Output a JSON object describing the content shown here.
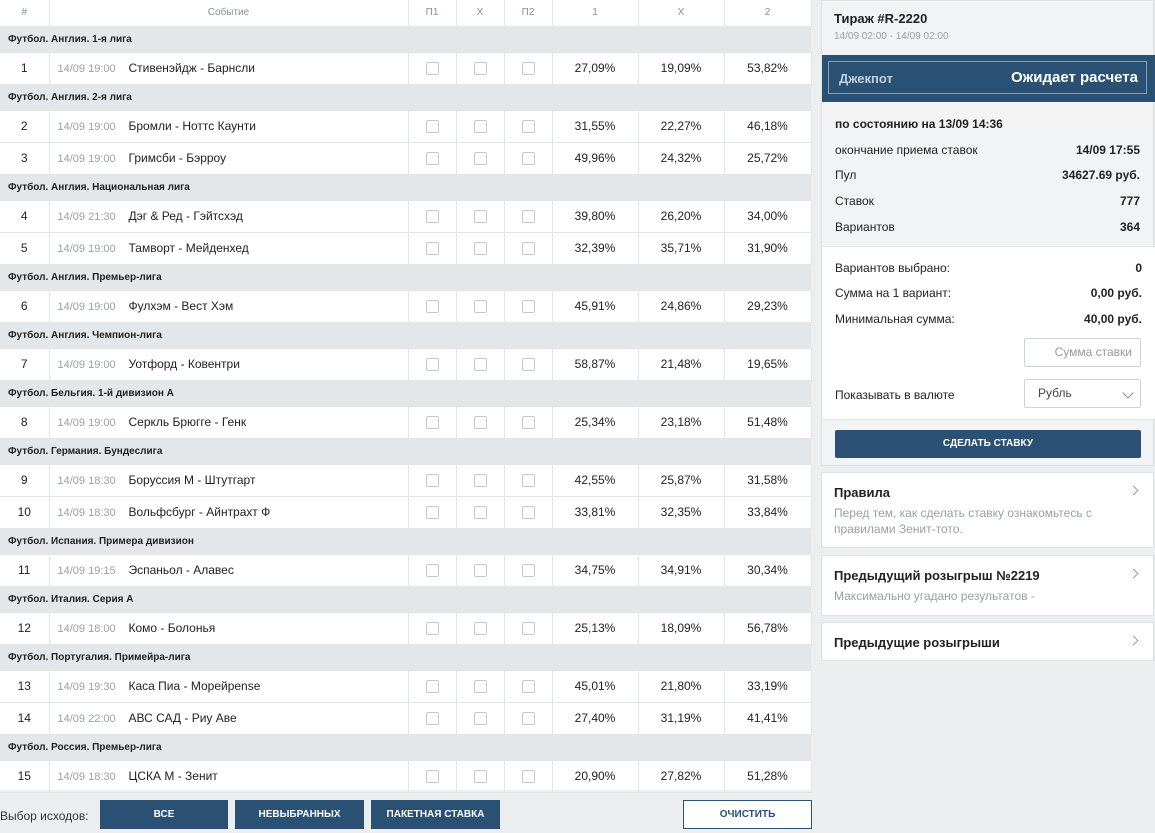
{
  "table": {
    "headers": [
      "#",
      "Событие",
      "П1",
      "Х",
      "П2",
      "1",
      "Х",
      "2"
    ],
    "groups": [
      {
        "league": "Футбол. Англия. 1-я лига",
        "events": [
          {
            "n": "1",
            "time": "14/09 19:00",
            "name": "Стивенэйдж - Барнсли",
            "p1": "27,09%",
            "x": "19,09%",
            "p2": "53,82%"
          }
        ]
      },
      {
        "league": "Футбол. Англия. 2-я лига",
        "events": [
          {
            "n": "2",
            "time": "14/09 19:00",
            "name": "Бромли - Ноттс Каунти",
            "p1": "31,55%",
            "x": "22,27%",
            "p2": "46,18%"
          },
          {
            "n": "3",
            "time": "14/09 19:00",
            "name": "Гримсби - Бэрроу",
            "p1": "49,96%",
            "x": "24,32%",
            "p2": "25,72%"
          }
        ]
      },
      {
        "league": "Футбол. Англия. Национальная лига",
        "events": [
          {
            "n": "4",
            "time": "14/09 21:30",
            "name": "Дэг & Ред - Гэйтсхэд",
            "p1": "39,80%",
            "x": "26,20%",
            "p2": "34,00%"
          },
          {
            "n": "5",
            "time": "14/09 19:00",
            "name": "Тамворт - Мейденхед",
            "p1": "32,39%",
            "x": "35,71%",
            "p2": "31,90%"
          }
        ]
      },
      {
        "league": "Футбол. Англия. Премьер-лига",
        "events": [
          {
            "n": "6",
            "time": "14/09 19:00",
            "name": "Фулхэм - Вест Хэм",
            "p1": "45,91%",
            "x": "24,86%",
            "p2": "29,23%"
          }
        ]
      },
      {
        "league": "Футбол. Англия. Чемпион-лига",
        "events": [
          {
            "n": "7",
            "time": "14/09 19:00",
            "name": "Уотфорд - Ковентри",
            "p1": "58,87%",
            "x": "21,48%",
            "p2": "19,65%"
          }
        ]
      },
      {
        "league": "Футбол. Бельгия. 1-й дивизион А",
        "events": [
          {
            "n": "8",
            "time": "14/09 19:00",
            "name": "Серкль Брюгге - Генк",
            "p1": "25,34%",
            "x": "23,18%",
            "p2": "51,48%"
          }
        ]
      },
      {
        "league": "Футбол. Германия. Бундеслига",
        "events": [
          {
            "n": "9",
            "time": "14/09 18:30",
            "name": "Боруссия М - Штутгарт",
            "p1": "42,55%",
            "x": "25,87%",
            "p2": "31,58%"
          },
          {
            "n": "10",
            "time": "14/09 18:30",
            "name": "Вольфсбург - Айнтрахт Ф",
            "p1": "33,81%",
            "x": "32,35%",
            "p2": "33,84%"
          }
        ]
      },
      {
        "league": "Футбол. Испания. Примера дивизион",
        "events": [
          {
            "n": "11",
            "time": "14/09 19:15",
            "name": "Эспаньол - Алавес",
            "p1": "34,75%",
            "x": "34,91%",
            "p2": "30,34%"
          }
        ]
      },
      {
        "league": "Футбол. Италия. Серия А",
        "events": [
          {
            "n": "12",
            "time": "14/09 18:00",
            "name": "Комо - Болонья",
            "p1": "25,13%",
            "x": "18,09%",
            "p2": "56,78%"
          }
        ]
      },
      {
        "league": "Футбол. Португалия. Примейра-лига",
        "events": [
          {
            "n": "13",
            "time": "14/09 19:30",
            "name": "Каса Пиа - Морейрense",
            "p1": "45,01%",
            "x": "21,80%",
            "p2": "33,19%"
          },
          {
            "n": "14",
            "time": "14/09 22:00",
            "name": "АВС САД - Риу Аве",
            "p1": "27,40%",
            "x": "31,19%",
            "p2": "41,41%"
          }
        ]
      },
      {
        "league": "Футбол. Россия. Премьер-лига",
        "events": [
          {
            "n": "15",
            "time": "14/09 18:30",
            "name": "ЦСКА М - Зенит",
            "p1": "20,90%",
            "x": "27,82%",
            "p2": "51,28%"
          }
        ]
      }
    ]
  },
  "bottom": {
    "label": "Выбор исходов:",
    "btn_all": "ВСЕ",
    "btn_unselected": "НЕВЫБРАННЫХ",
    "btn_package": "ПАКЕТНАЯ СТАВКА",
    "btn_clear": "ОЧИСТИТЬ"
  },
  "draw": {
    "title": "Тираж #R-2220",
    "dates": "14/09 02:00 - 14/09 02:00",
    "jackpot_label": "Джекпот",
    "jackpot_status": "Ожидает расчета",
    "state_label": "по состоянию на 13/09 14:36",
    "rows": [
      {
        "label": "окончание приема ставок",
        "value": "14/09 17:55"
      },
      {
        "label": "Пул",
        "value": "34627.69 руб."
      },
      {
        "label": "Ставок",
        "value": "777"
      },
      {
        "label": "Вариантов",
        "value": "364"
      }
    ],
    "selection": [
      {
        "label": "Вариантов выбрано:",
        "value": "0"
      },
      {
        "label": "Сумма на 1 вариант:",
        "value": "0,00 руб."
      },
      {
        "label": "Минимальная сумма:",
        "value": "40,00 руб."
      }
    ],
    "stake_placeholder": "Сумма ставки",
    "currency_label": "Показывать в валюте",
    "currency_value": "Рубль",
    "bet_button": "СДЕЛАТЬ СТАВКУ"
  },
  "rules": {
    "title": "Правила",
    "desc": "Перед тем, как сделать ставку ознакомьтесь с правилами Зенит-тото."
  },
  "prev_draw": {
    "title": "Предыдущий розыгрыш №2219",
    "desc": "Максимально угадано результатов -"
  },
  "prev_draws": {
    "title": "Предыдущие розыгрыши"
  },
  "colors": {
    "accent": "#2a5073",
    "league_bg": "#e4e7ea",
    "page_bg": "#eceef0"
  }
}
